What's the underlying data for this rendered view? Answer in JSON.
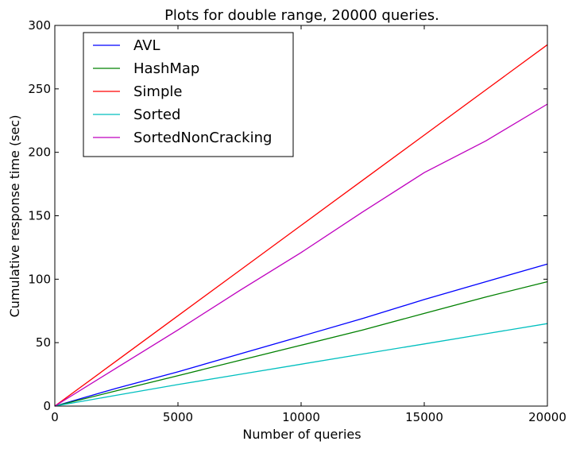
{
  "chart_data": {
    "type": "line",
    "title": "Plots for double range, 20000 queries.",
    "xlabel": "Number of queries",
    "ylabel": "Cumulative response time (sec)",
    "xlim": [
      0,
      20000
    ],
    "ylim": [
      0,
      300
    ],
    "xticks": [
      0,
      5000,
      10000,
      15000,
      20000
    ],
    "yticks": [
      0,
      50,
      100,
      150,
      200,
      250,
      300
    ],
    "xtick_labels": [
      "0",
      "5000",
      "10000",
      "15000",
      "20000"
    ],
    "ytick_labels": [
      "0",
      "50",
      "100",
      "150",
      "200",
      "250",
      "300"
    ],
    "grid": false,
    "legend_position": "top-left",
    "x": [
      0,
      2500,
      5000,
      7500,
      10000,
      12500,
      15000,
      17500,
      20000
    ],
    "series": [
      {
        "name": "AVL",
        "color": "#0000ff",
        "values": [
          0,
          14,
          27,
          41,
          55,
          69,
          84,
          98,
          112
        ]
      },
      {
        "name": "HashMap",
        "color": "#008000",
        "values": [
          0,
          12,
          24,
          36,
          48,
          60,
          73,
          86,
          98
        ]
      },
      {
        "name": "Simple",
        "color": "#ff0000",
        "values": [
          0,
          35.6,
          71.2,
          106.8,
          142.4,
          178,
          213.6,
          249.2,
          284.8
        ]
      },
      {
        "name": "Sorted",
        "color": "#00bfbf",
        "values": [
          0,
          8.5,
          17,
          25,
          33,
          41,
          49,
          57,
          65
        ]
      },
      {
        "name": "SortedNonCracking",
        "color": "#bf00bf",
        "values": [
          0,
          30,
          60,
          91,
          121,
          153,
          184,
          209,
          238
        ]
      }
    ]
  }
}
